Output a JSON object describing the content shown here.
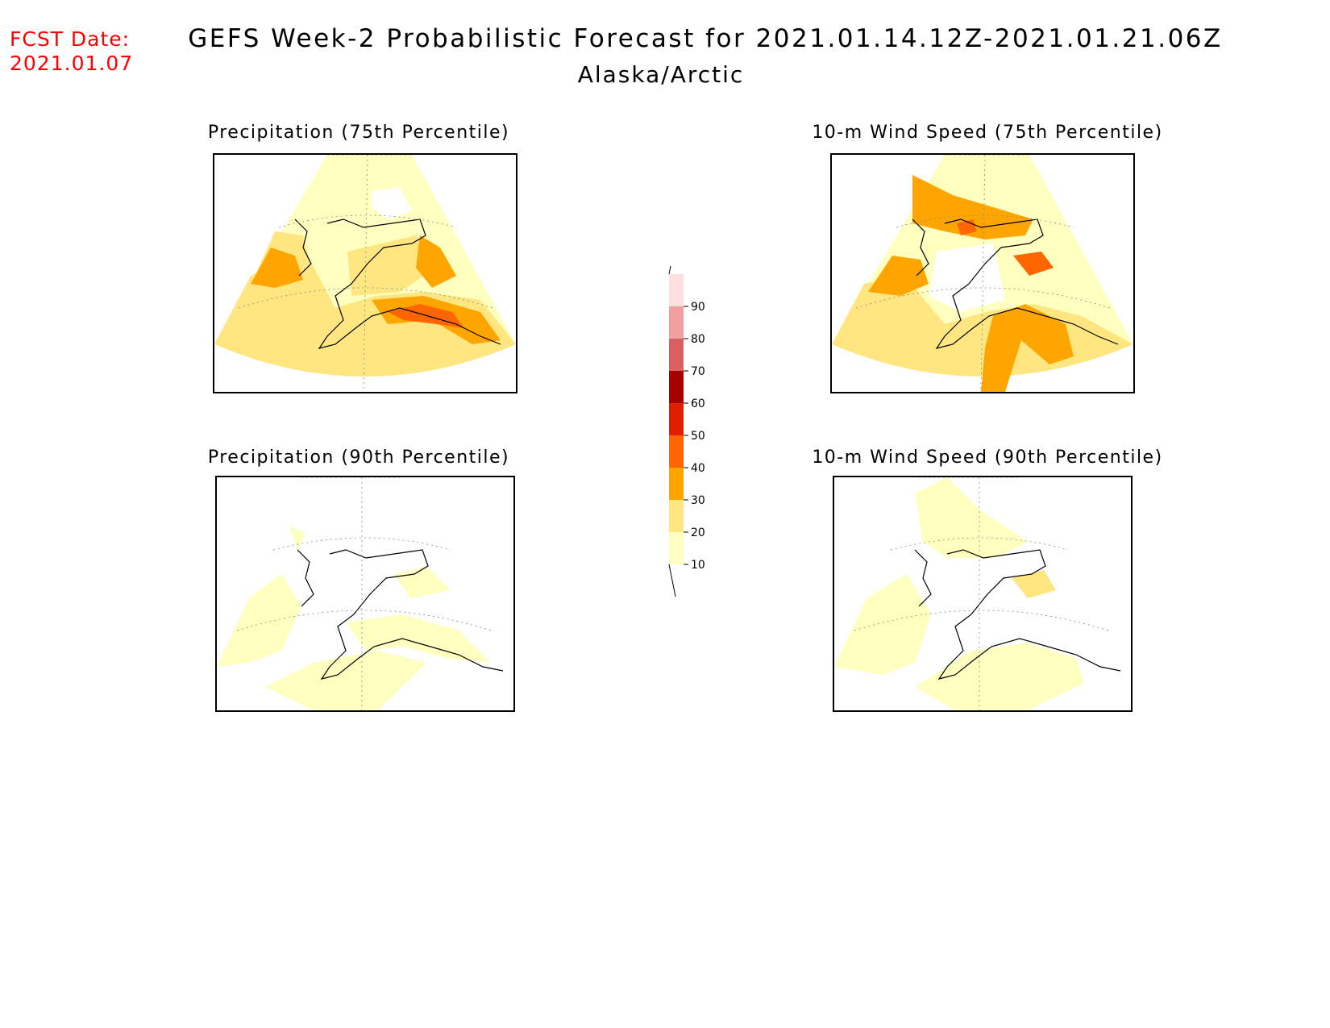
{
  "header": {
    "fcst_label": "FCST Date:",
    "fcst_date": "2021.01.07",
    "title": "GEFS Week-2 Probabilistic Forecast for 2021.01.14.12Z-2021.01.21.06Z",
    "subtitle": "Alaska/Arctic"
  },
  "panels": [
    {
      "id": "precip75",
      "title": "Precipitation (75th Percentile)"
    },
    {
      "id": "wind75",
      "title": "10-m Wind Speed (75th Percentile)"
    },
    {
      "id": "precip90",
      "title": "Precipitation (90th Percentile)"
    },
    {
      "id": "wind90",
      "title": "10-m Wind Speed (90th Percentile)"
    }
  ],
  "colorbar": {
    "levels": [
      "10",
      "20",
      "30",
      "40",
      "50",
      "60",
      "70",
      "80",
      "90"
    ],
    "colors": [
      "#ffffc0",
      "#ffe680",
      "#ffa500",
      "#ff6600",
      "#e01e00",
      "#a50000",
      "#d86060",
      "#f0a0a0",
      "#ffe0e0"
    ]
  }
}
